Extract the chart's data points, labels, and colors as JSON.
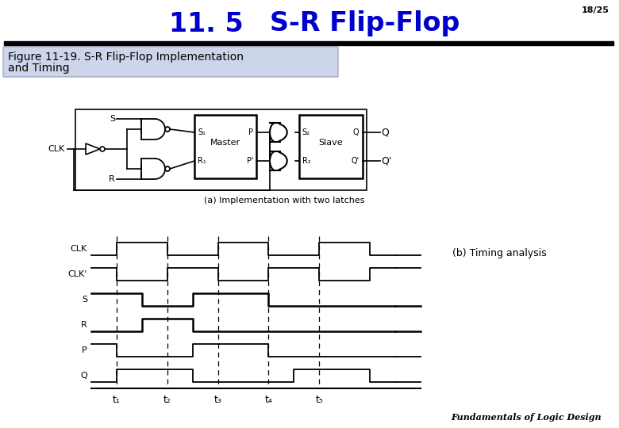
{
  "title_num": "11. 5",
  "title_main": "S-R Flip-Flop",
  "slide_num": "18/25",
  "caption_line1": "Figure 11-19. S-R Flip-Flop Implementation",
  "caption_line2": "and Timing",
  "footer": "Fundamentals of Logic Design",
  "timing_label": "(b) Timing analysis",
  "impl_label": "(a) Implementation with two latches",
  "bg_color": "#ffffff",
  "title_color": "#0000cc",
  "text_color": "#000000",
  "signal_names": [
    "CLK",
    "CLK'",
    "S",
    "R",
    "P",
    "Q"
  ],
  "t_labels": [
    "t₁",
    "t₂",
    "t₃",
    "t₄",
    "t₅"
  ],
  "t_positions": [
    1,
    2,
    3,
    4,
    5
  ],
  "clk": [
    0,
    1,
    1,
    0,
    0,
    1,
    1,
    0,
    0,
    1,
    1,
    0,
    0
  ],
  "clkb": [
    1,
    0,
    0,
    1,
    1,
    0,
    0,
    1,
    1,
    0,
    0,
    1,
    1
  ],
  "S": [
    1,
    1,
    0,
    0,
    1,
    1,
    1,
    0,
    0,
    0,
    0,
    0,
    0
  ],
  "R": [
    0,
    0,
    1,
    1,
    0,
    0,
    0,
    0,
    0,
    0,
    0,
    0,
    0
  ],
  "P": [
    1,
    0,
    0,
    0,
    1,
    1,
    1,
    0,
    0,
    0,
    0,
    0,
    0
  ],
  "Q": [
    0,
    1,
    1,
    1,
    0,
    0,
    0,
    0,
    1,
    1,
    1,
    0,
    0
  ],
  "t_x": [
    0.5,
    1.0,
    1.5,
    2.0,
    2.5,
    3.0,
    3.5,
    4.0,
    4.5,
    5.0,
    5.5,
    6.0,
    6.5
  ]
}
